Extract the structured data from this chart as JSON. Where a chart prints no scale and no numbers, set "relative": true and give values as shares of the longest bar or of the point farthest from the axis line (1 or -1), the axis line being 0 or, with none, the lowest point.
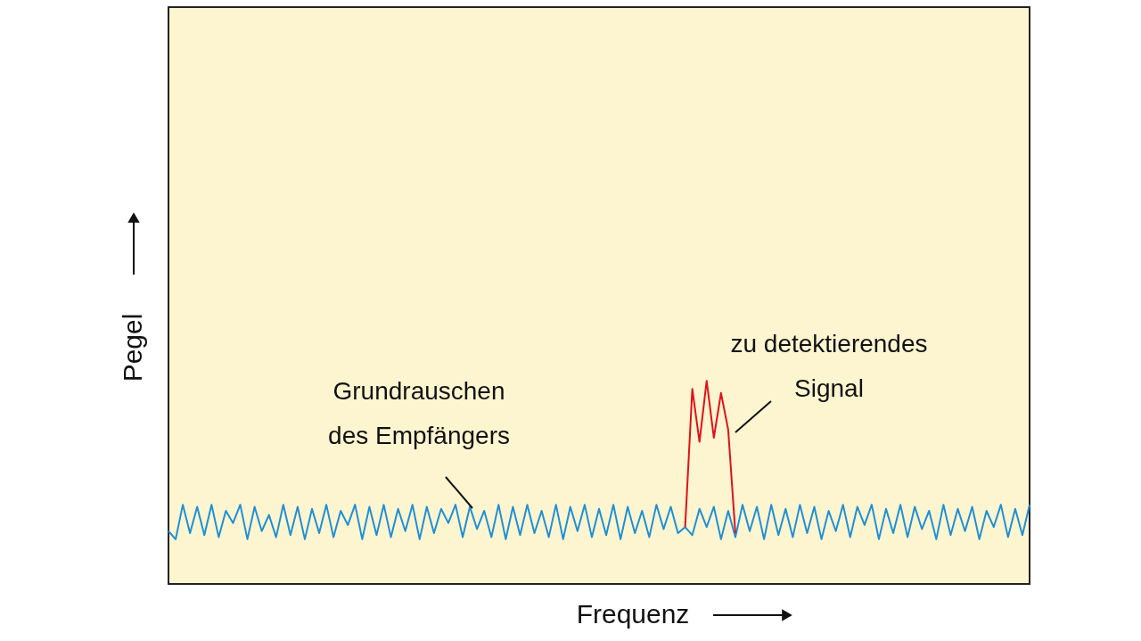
{
  "chart_data": {
    "type": "line",
    "relative": true,
    "xlabel": "Frequenz",
    "ylabel": "Pegel",
    "categories": [
      null,
      null,
      null,
      null,
      null,
      null,
      null,
      null,
      null,
      null,
      null,
      null,
      null,
      null,
      null,
      null,
      null,
      null,
      null,
      null,
      null,
      null,
      null,
      null,
      null,
      null,
      null,
      null,
      null,
      null,
      null,
      null,
      null,
      null,
      null,
      null,
      null,
      null,
      null,
      null,
      null,
      null,
      null,
      null,
      null,
      null,
      null,
      null,
      null,
      null,
      null,
      null,
      null,
      null,
      null,
      null,
      null,
      null,
      null,
      null,
      null,
      null,
      null,
      null,
      null,
      null,
      null,
      null,
      null,
      null,
      null,
      null,
      null,
      null,
      null,
      null,
      null,
      null,
      null,
      null,
      null,
      null,
      null,
      null,
      null,
      null,
      null,
      null,
      null,
      null,
      null,
      null,
      null,
      null,
      null,
      null,
      null,
      null,
      null,
      null,
      null,
      null,
      null,
      null,
      null,
      null,
      null,
      null,
      null,
      null,
      null,
      null,
      null,
      null,
      null,
      null,
      null,
      null,
      null,
      null,
      null
    ],
    "series": [
      {
        "color": "#1f8fd6",
        "values": [
          0.26,
          0.22,
          0.39,
          0.25,
          0.38,
          0.24,
          0.39,
          0.23,
          0.36,
          0.3,
          0.39,
          0.22,
          0.38,
          0.26,
          0.34,
          0.23,
          0.39,
          0.24,
          0.38,
          0.22,
          0.37,
          0.25,
          0.39,
          0.23,
          0.36,
          0.29,
          0.39,
          0.22,
          0.38,
          0.24,
          0.39,
          0.23,
          0.37,
          0.26,
          0.39,
          0.22,
          0.38,
          0.25,
          0.37,
          0.3,
          0.39,
          0.23,
          0.38,
          0.27,
          0.36,
          0.23,
          0.39,
          0.22,
          0.38,
          0.24,
          0.39,
          0.25,
          0.36,
          0.23,
          0.39,
          0.22,
          0.38,
          0.26,
          0.39,
          0.23,
          0.37,
          0.24,
          0.39,
          0.22,
          0.38,
          0.25,
          0.36,
          0.23,
          0.39,
          0.27,
          0.38,
          0.25,
          0.28,
          0.24,
          0.37,
          0.28,
          0.38,
          0.22,
          0.36,
          0.23,
          0.39,
          0.26,
          0.38,
          0.22,
          0.39,
          0.24,
          0.37,
          0.23,
          0.39,
          0.25,
          0.38,
          0.22,
          0.36,
          0.26,
          0.39,
          0.23,
          0.38,
          0.29,
          0.39,
          0.22,
          0.37,
          0.25,
          0.39,
          0.23,
          0.38,
          0.27,
          0.36,
          0.22,
          0.39,
          0.24,
          0.37,
          0.26,
          0.38,
          0.22,
          0.36,
          0.28,
          0.39,
          0.23,
          0.37,
          0.24,
          0.39
        ]
      },
      {
        "color": "#e0101a",
        "values": [
          null,
          null,
          null,
          null,
          null,
          null,
          null,
          null,
          null,
          null,
          null,
          null,
          null,
          null,
          null,
          null,
          null,
          null,
          null,
          null,
          null,
          null,
          null,
          null,
          null,
          null,
          null,
          null,
          null,
          null,
          null,
          null,
          null,
          null,
          null,
          null,
          null,
          null,
          null,
          null,
          null,
          null,
          null,
          null,
          null,
          null,
          null,
          null,
          null,
          null,
          null,
          null,
          null,
          null,
          null,
          null,
          null,
          null,
          null,
          null,
          null,
          null,
          null,
          null,
          null,
          null,
          null,
          null,
          null,
          null,
          null,
          null,
          0.28,
          0.96,
          0.7,
          1.0,
          0.72,
          0.94,
          0.76,
          0.25,
          null,
          null,
          null,
          null,
          null,
          null,
          null,
          null,
          null,
          null,
          null,
          null,
          null,
          null,
          null,
          null,
          null,
          null,
          null,
          null,
          null,
          null,
          null,
          null,
          null,
          null,
          null,
          null,
          null,
          null,
          null,
          null,
          null,
          null,
          null,
          null,
          null,
          null,
          null,
          null,
          null
        ]
      }
    ],
    "annotations": [
      "Grundrauschen\ndes Empfängers",
      "zu detektierendes\nSignal"
    ]
  }
}
